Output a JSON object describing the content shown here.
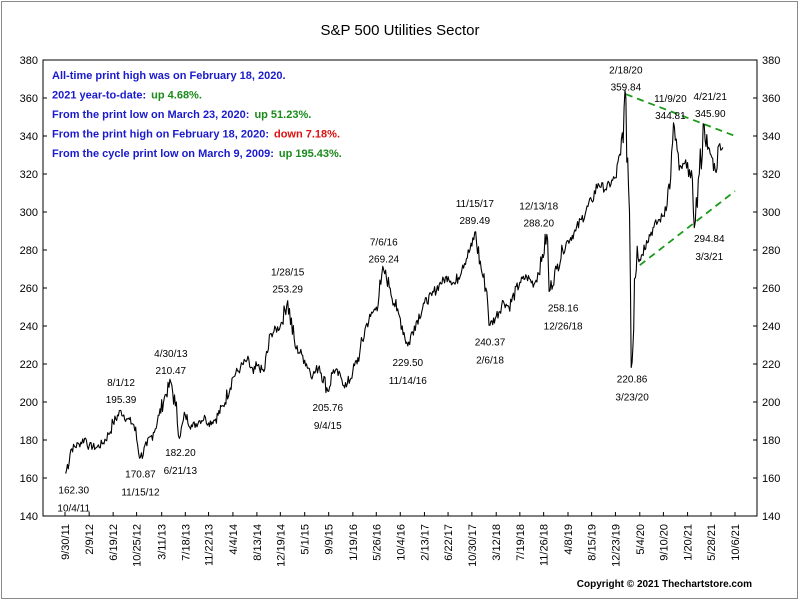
{
  "chart_data": {
    "type": "line",
    "title": "S&P 500 Utilities Sector",
    "xlabel": "",
    "ylabel": "",
    "ylim": [
      140,
      380
    ],
    "yticks": [
      140,
      160,
      180,
      200,
      220,
      240,
      260,
      280,
      300,
      320,
      340,
      360,
      380
    ],
    "x_tick_labels": [
      "9/30/11",
      "2/9/12",
      "6/19/12",
      "10/25/12",
      "3/11/13",
      "7/18/13",
      "11/22/13",
      "4/4/14",
      "8/13/14",
      "12/19/14",
      "5/1/15",
      "9/9/15",
      "1/19/16",
      "5/26/16",
      "10/4/16",
      "2/13/17",
      "6/22/17",
      "10/30/17",
      "3/12/18",
      "7/19/18",
      "11/26/18",
      "4/8/19",
      "8/15/19",
      "12/23/19",
      "5/4/20",
      "9/10/20",
      "1/20/21",
      "5/28/21",
      "10/6/21"
    ],
    "grid": false,
    "series": [
      {
        "name": "",
        "color": "#000000",
        "points": [
          [
            "10/4/11",
            162.3
          ],
          [
            "11/1/11",
            175
          ],
          [
            "12/15/11",
            178
          ],
          [
            "1/20/12",
            181
          ],
          [
            "2/9/12",
            177
          ],
          [
            "3/20/12",
            176
          ],
          [
            "4/20/12",
            178
          ],
          [
            "5/25/12",
            183
          ],
          [
            "6/19/12",
            189
          ],
          [
            "8/1/12",
            195.39
          ],
          [
            "9/5/12",
            191
          ],
          [
            "10/10/12",
            188
          ],
          [
            "11/15/12",
            170.87
          ],
          [
            "12/20/12",
            177
          ],
          [
            "1/25/13",
            184
          ],
          [
            "2/25/13",
            193
          ],
          [
            "3/25/13",
            202
          ],
          [
            "4/30/13",
            210.47
          ],
          [
            "5/25/13",
            198
          ],
          [
            "6/21/13",
            182.2
          ],
          [
            "7/18/13",
            193
          ],
          [
            "8/25/13",
            187
          ],
          [
            "9/30/13",
            190
          ],
          [
            "11/5/13",
            192
          ],
          [
            "11/22/13",
            189
          ],
          [
            "12/30/13",
            191
          ],
          [
            "2/10/14",
            198
          ],
          [
            "4/4/14",
            213
          ],
          [
            "5/15/14",
            218
          ],
          [
            "6/20/14",
            222
          ],
          [
            "7/25/14",
            215
          ],
          [
            "8/13/14",
            219
          ],
          [
            "9/20/14",
            216
          ],
          [
            "10/30/14",
            236
          ],
          [
            "12/19/14",
            240
          ],
          [
            "1/28/15",
            253.29
          ],
          [
            "3/10/15",
            229
          ],
          [
            "4/15/15",
            225
          ],
          [
            "5/1/15",
            222
          ],
          [
            "6/15/15",
            214
          ],
          [
            "7/20/15",
            219
          ],
          [
            "9/4/15",
            205.76
          ],
          [
            "10/5/15",
            217
          ],
          [
            "11/15/15",
            213
          ],
          [
            "12/15/15",
            208
          ],
          [
            "1/19/16",
            216
          ],
          [
            "2/25/16",
            225
          ],
          [
            "3/30/16",
            240
          ],
          [
            "4/25/16",
            245
          ],
          [
            "5/26/16",
            250
          ],
          [
            "6/20/16",
            262
          ],
          [
            "7/6/16",
            269.24
          ],
          [
            "8/10/16",
            260
          ],
          [
            "9/15/16",
            248
          ],
          [
            "10/4/16",
            244
          ],
          [
            "11/14/16",
            229.5
          ],
          [
            "12/20/16",
            240
          ],
          [
            "2/13/17",
            252
          ],
          [
            "3/25/17",
            256
          ],
          [
            "5/5/17",
            262
          ],
          [
            "6/22/17",
            266
          ],
          [
            "7/30/17",
            262
          ],
          [
            "9/10/17",
            272
          ],
          [
            "10/30/17",
            282
          ],
          [
            "11/15/17",
            289.49
          ],
          [
            "12/20/17",
            270
          ],
          [
            "1/20/18",
            258
          ],
          [
            "2/6/18",
            240.37
          ],
          [
            "3/12/18",
            245
          ],
          [
            "4/20/18",
            253
          ],
          [
            "5/20/18",
            250
          ],
          [
            "7/19/18",
            263
          ],
          [
            "8/25/18",
            266
          ],
          [
            "10/5/18",
            262
          ],
          [
            "11/15/18",
            274
          ],
          [
            "12/13/18",
            288.2
          ],
          [
            "12/26/18",
            258.16
          ],
          [
            "2/5/19",
            270
          ],
          [
            "3/10/19",
            280
          ],
          [
            "4/8/19",
            285
          ],
          [
            "5/20/19",
            290
          ],
          [
            "6/20/19",
            296
          ],
          [
            "8/15/19",
            306
          ],
          [
            "9/20/19",
            315
          ],
          [
            "10/30/19",
            312
          ],
          [
            "12/23/19",
            318
          ],
          [
            "1/20/20",
            330
          ],
          [
            "2/18/20",
            359.84
          ],
          [
            "3/9/20",
            300
          ],
          [
            "3/23/20",
            220.86
          ],
          [
            "4/5/20",
            265
          ],
          [
            "4/20/20",
            282
          ],
          [
            "5/4/20",
            275
          ],
          [
            "6/10/20",
            285
          ],
          [
            "7/20/20",
            292
          ],
          [
            "8/20/20",
            296
          ],
          [
            "9/10/20",
            298
          ],
          [
            "10/20/20",
            318
          ],
          [
            "11/9/20",
            344.81
          ],
          [
            "12/5/20",
            322
          ],
          [
            "1/20/21",
            326
          ],
          [
            "2/5/21",
            318
          ],
          [
            "3/3/21",
            294.84
          ],
          [
            "3/25/21",
            320
          ],
          [
            "4/21/21",
            345.9
          ],
          [
            "5/10/21",
            333
          ],
          [
            "5/28/21",
            330
          ],
          [
            "6/20/21",
            322
          ],
          [
            "7/15/21",
            336
          ],
          [
            "8/1/21",
            334
          ]
        ]
      }
    ],
    "annotations": [
      {
        "date": "2/18/20",
        "value": "359.84"
      },
      {
        "date": "11/9/20",
        "value": "344.81"
      },
      {
        "date": "4/21/21",
        "value": "345.90"
      },
      {
        "date": "11/15/17",
        "value": "289.49"
      },
      {
        "date": "12/13/18",
        "value": "288.20"
      },
      {
        "date": "7/6/16",
        "value": "269.24"
      },
      {
        "date": "1/28/15",
        "value": "253.29"
      },
      {
        "date": "3/3/21",
        "value": "294.84"
      },
      {
        "date": "12/26/18",
        "value": "258.16"
      },
      {
        "date": "2/6/18",
        "value": "240.37"
      },
      {
        "date": "11/14/16",
        "value": "229.50"
      },
      {
        "date": "4/30/13",
        "value": "210.47"
      },
      {
        "date": "8/1/12",
        "value": "195.39"
      },
      {
        "date": "3/23/20",
        "value": "220.86"
      },
      {
        "date": "9/4/15",
        "value": "205.76"
      },
      {
        "date": "6/21/13",
        "value": "182.20"
      },
      {
        "date": "11/15/12",
        "value": "170.87"
      },
      {
        "date": "10/4/11",
        "value": "162.30"
      }
    ],
    "trend_lines": [
      {
        "color": "#1a9a1a",
        "from": [
          "2/18/20",
          362
        ],
        "to": [
          "10/6/21",
          340
        ]
      },
      {
        "color": "#1a9a1a",
        "from": [
          "5/4/20",
          272
        ],
        "to": [
          "10/6/21",
          311
        ]
      }
    ]
  },
  "info_lines": [
    {
      "label": "All-time print high was on February 18, 2020.",
      "value": "",
      "label_color": "#1a1acc",
      "value_color": "#1a1acc"
    },
    {
      "label": "2021 year-to-date:",
      "value": "up 4.68%.",
      "label_color": "#1a1acc",
      "value_color": "#1a8a1a"
    },
    {
      "label": "From the print low on March 23, 2020:",
      "value": "up 51.23%.",
      "label_color": "#1a1acc",
      "value_color": "#1a8a1a"
    },
    {
      "label": "From the print high on February 18, 2020:",
      "value": "down 7.18%.",
      "label_color": "#1a1acc",
      "value_color": "#dd1111"
    },
    {
      "label": "From the cycle print low on March 9, 2009:",
      "value": "up 195.43%.",
      "label_color": "#1a1acc",
      "value_color": "#1a8a1a"
    }
  ],
  "copyright": "Copyright © 2021 Thechartstore.com"
}
